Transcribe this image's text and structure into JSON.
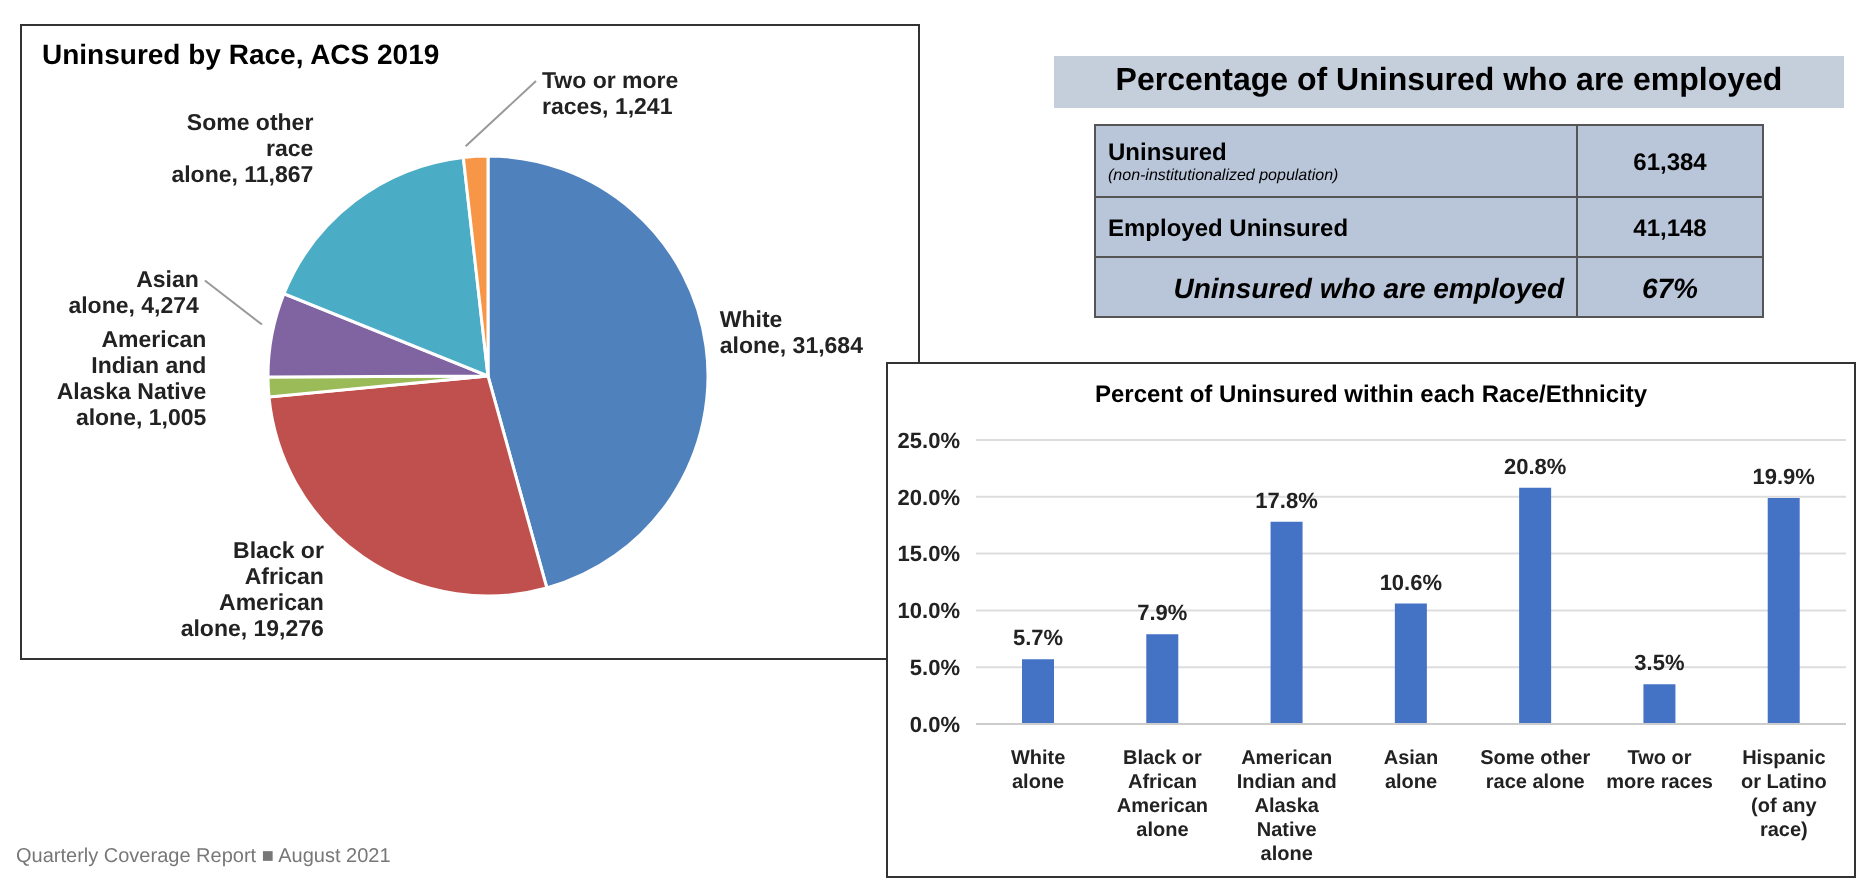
{
  "chart_data": [
    {
      "type": "pie",
      "title": "Uninsured by Race, ACS 2019",
      "categories": [
        "White alone",
        "Black or African American alone",
        "American Indian and Alaska Native alone",
        "Asian alone",
        "Some other race alone",
        "Two or more races"
      ],
      "values": [
        31684,
        19276,
        1005,
        4274,
        11867,
        1241
      ],
      "colors": [
        "#4f81bd",
        "#c0504d",
        "#9bbb59",
        "#8064a2",
        "#4bacc6",
        "#f79646"
      ],
      "value_labels": [
        "31,684",
        "19,276",
        "1,005",
        "4,274",
        "11,867",
        "1,241"
      ],
      "legend": false
    },
    {
      "type": "other",
      "title": "Percentage of Uninsured who are employed",
      "annotations": [
        "Uninsured",
        "(non-institutionalized population)",
        "61,384",
        "Employed Uninsured",
        "41,148",
        "Uninsured who are employed",
        "67%",
        "Quarterly Coverage Report ■ August 2021"
      ]
    },
    {
      "type": "bar",
      "title": "Percent of Uninsured within each Race/Ethnicity",
      "categories": [
        "White alone",
        "Black or African American alone",
        "American Indian and Alaska Native alone",
        "Asian alone",
        "Some other race alone",
        "Two or more races",
        "Hispanic or Latino (of any race)"
      ],
      "values": [
        5.7,
        7.9,
        17.8,
        10.6,
        20.8,
        3.5,
        19.9
      ],
      "color": "#4472c4",
      "value_labels": [
        "5.7%",
        "7.9%",
        "17.8%",
        "10.6%",
        "20.8%",
        "3.5%",
        "19.9%"
      ],
      "ylim": [
        0,
        25
      ],
      "yticks": [
        {
          "value": 0,
          "label": "0.0%"
        },
        {
          "value": 5,
          "label": "5.0%"
        },
        {
          "value": 10,
          "label": "10.0%"
        },
        {
          "value": 15,
          "label": "15.0%"
        },
        {
          "value": 20,
          "label": "20.0%"
        },
        {
          "value": 25,
          "label": "25.0%"
        }
      ],
      "grid": "y",
      "legend": false
    }
  ]
}
